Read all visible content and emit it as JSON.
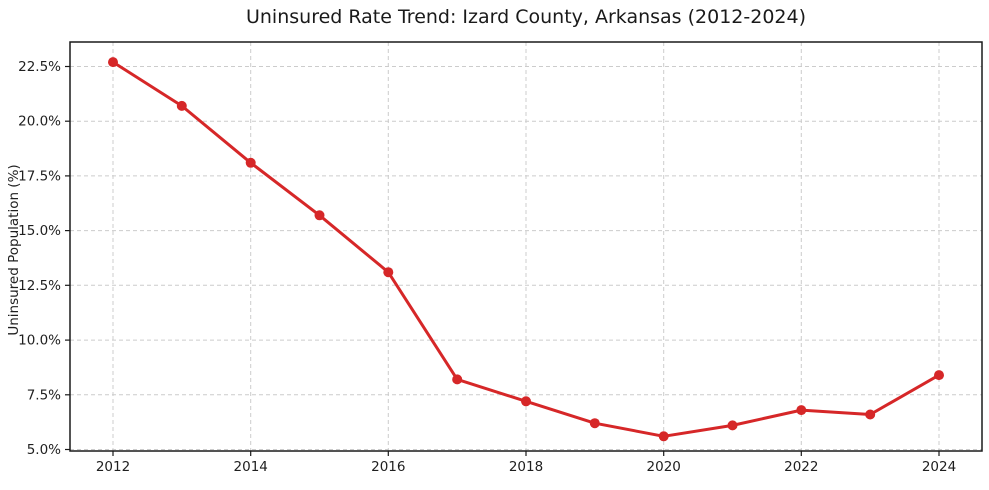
{
  "chart_data": {
    "type": "line",
    "title": "Uninsured Rate Trend: Izard County, Arkansas (2012-2024)",
    "xlabel": "",
    "ylabel": "Uninsured Population (%)",
    "x": [
      2012,
      2013,
      2014,
      2015,
      2016,
      2017,
      2018,
      2019,
      2020,
      2021,
      2022,
      2023,
      2024
    ],
    "values": [
      22.7,
      20.7,
      18.1,
      15.7,
      13.1,
      8.2,
      7.2,
      6.2,
      5.6,
      6.1,
      6.8,
      6.6,
      8.4
    ],
    "unit": "%",
    "x_ticks": [
      2012,
      2014,
      2016,
      2018,
      2020,
      2022,
      2024
    ],
    "x_tick_labels": [
      "2012",
      "2014",
      "2016",
      "2018",
      "2020",
      "2022",
      "2024"
    ],
    "y_ticks": [
      5.0,
      7.5,
      10.0,
      12.5,
      15.0,
      17.5,
      20.0,
      22.5
    ],
    "y_tick_labels": [
      "5.0%",
      "7.5%",
      "10.0%",
      "12.5%",
      "15.0%",
      "17.5%",
      "20.0%",
      "22.5%"
    ],
    "xlim": [
      2011.375,
      2024.625
    ],
    "ylim": [
      4.93,
      23.62
    ],
    "grid": "dashed",
    "legend": "none",
    "marker": "circle",
    "colors": {
      "line": "#d62728",
      "marker": "#d62728",
      "grid": "#cccccc",
      "spine": "#1a1a1a",
      "tick": "#1a1a1a",
      "tick_label": "#1f1f1f",
      "title": "#1a1a1a",
      "background": "#ffffff"
    }
  }
}
